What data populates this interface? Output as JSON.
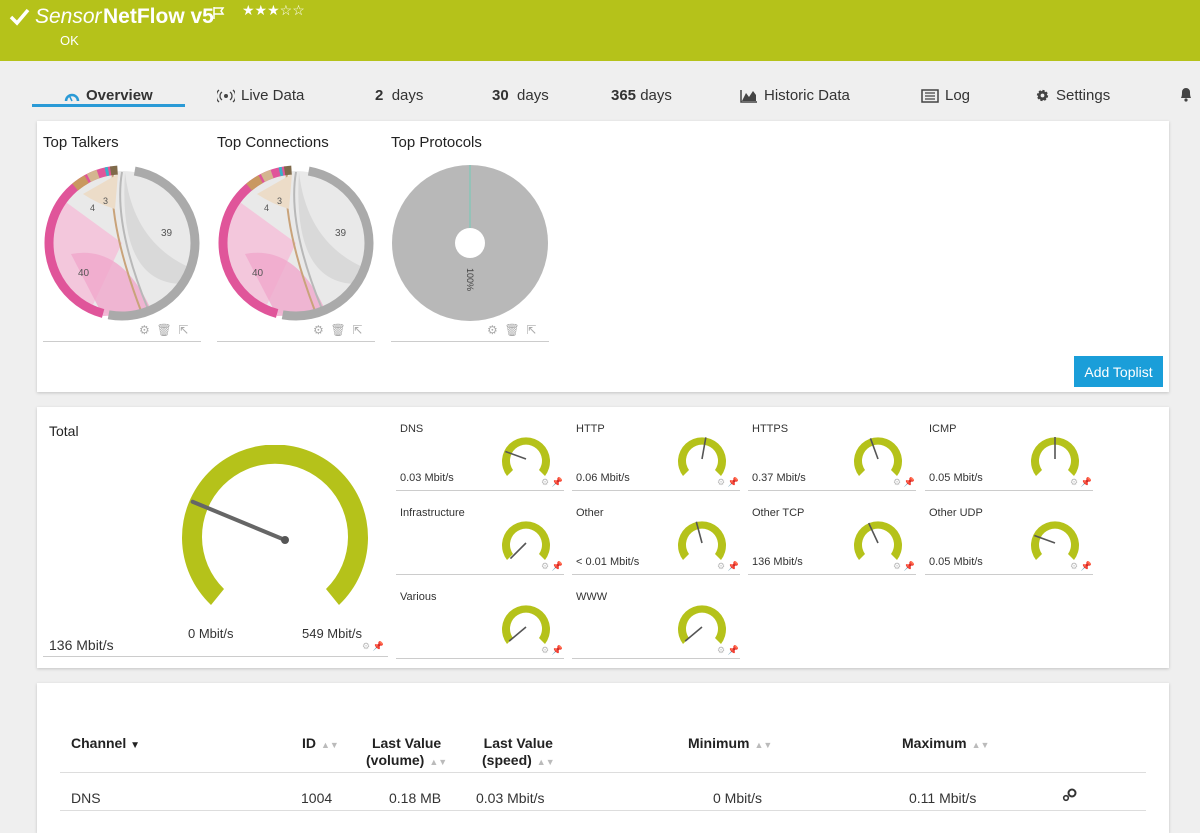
{
  "header": {
    "prefix": "Sensor",
    "title": "NetFlow v5",
    "stars": "★★★☆☆",
    "status": "OK",
    "color": "#b5c21a"
  },
  "tabs": [
    {
      "label": "Overview",
      "icon": "overview-gauge-icon"
    },
    {
      "label": "Live Data",
      "icon": "live-data-icon"
    },
    {
      "num": "2",
      "unit": "days"
    },
    {
      "num": "30",
      "unit": "days"
    },
    {
      "num": "365",
      "unit": "days"
    },
    {
      "label": "Historic Data",
      "icon": "chart-icon"
    },
    {
      "label": "Log",
      "icon": "log-icon"
    },
    {
      "label": "Settings",
      "icon": "gear-icon"
    }
  ],
  "toplists": [
    {
      "title": "Top Talkers",
      "labels": [
        "39",
        "40",
        "4",
        "3"
      ]
    },
    {
      "title": "Top Connections",
      "labels": [
        "39",
        "40",
        "4",
        "3"
      ]
    },
    {
      "title": "Top Protocols",
      "labels": [
        "100%"
      ]
    }
  ],
  "add_toplist_label": "Add Toplist",
  "total": {
    "title": "Total",
    "value": "136 Mbit/s",
    "min": "0 Mbit/s",
    "max": "549 Mbit/s",
    "fraction": 0.25
  },
  "gauges": [
    {
      "name": "DNS",
      "value": "0.03 Mbit/s",
      "angle": -70
    },
    {
      "name": "HTTP",
      "value": "0.06 Mbit/s",
      "angle": 10
    },
    {
      "name": "HTTPS",
      "value": "0.37 Mbit/s",
      "angle": -20
    },
    {
      "name": "ICMP",
      "value": "0.05 Mbit/s",
      "angle": 0
    },
    {
      "name": "Infrastructure",
      "value": "",
      "angle": -135
    },
    {
      "name": "Other",
      "value": "< 0.01 Mbit/s",
      "angle": -15
    },
    {
      "name": "Other TCP",
      "value": "136 Mbit/s",
      "angle": -25
    },
    {
      "name": "Other UDP",
      "value": "0.05 Mbit/s",
      "angle": -70
    },
    {
      "name": "Various",
      "value": "",
      "angle": -130
    },
    {
      "name": "WWW",
      "value": "",
      "angle": -130
    }
  ],
  "table": {
    "headers": {
      "channel": "Channel",
      "id": "ID",
      "last_volume_1": "Last Value",
      "last_volume_2": "(volume)",
      "last_speed_1": "Last Value",
      "last_speed_2": "(speed)",
      "minimum": "Minimum",
      "maximum": "Maximum"
    },
    "rows": [
      {
        "channel": "DNS",
        "id": "1004",
        "volume": "0.18 MB",
        "speed": "0.03 Mbit/s",
        "minimum": "0 Mbit/s",
        "maximum": "0.11 Mbit/s"
      }
    ]
  }
}
